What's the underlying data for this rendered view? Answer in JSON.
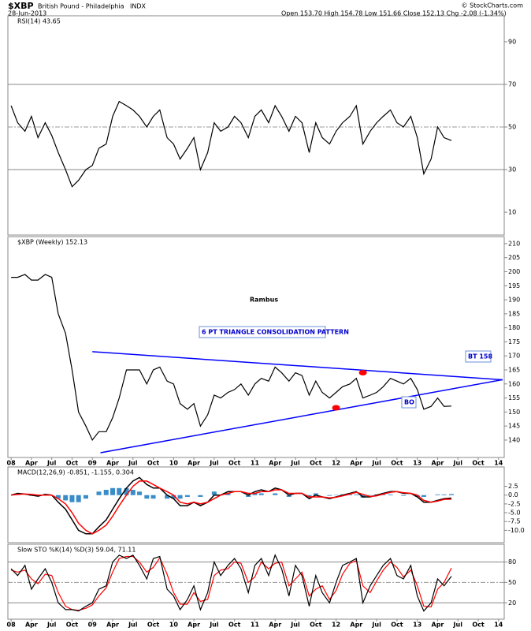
{
  "header": {
    "symbol": "$XBP",
    "name": "British Pound - Philadelphia",
    "exchange": "INDX",
    "date": "28-Jun-2013",
    "quote": "Open 153.70  High 154.78  Low 151.66  Close 152.13  Chg -2.08 (-1.34%)",
    "credit": "© StockCharts.com"
  },
  "chart_data": [
    {
      "type": "line",
      "title": "RSI(14) 43.65",
      "xlim": [
        2007.96,
        2014.07
      ],
      "ylim": [
        -0.7,
        102.2
      ],
      "yticks": [
        10,
        30,
        50,
        70,
        90
      ],
      "hlines": [
        70,
        30
      ],
      "dashed_hlines": [
        50
      ],
      "x": [
        2008.0,
        2008.08,
        2008.17,
        2008.25,
        2008.33,
        2008.42,
        2008.5,
        2008.58,
        2008.67,
        2008.75,
        2008.83,
        2008.92,
        2009.0,
        2009.08,
        2009.17,
        2009.25,
        2009.33,
        2009.42,
        2009.5,
        2009.58,
        2009.67,
        2009.75,
        2009.83,
        2009.92,
        2010.0,
        2010.08,
        2010.17,
        2010.25,
        2010.33,
        2010.42,
        2010.5,
        2010.58,
        2010.67,
        2010.75,
        2010.83,
        2010.92,
        2011.0,
        2011.08,
        2011.17,
        2011.25,
        2011.33,
        2011.42,
        2011.5,
        2011.58,
        2011.67,
        2011.75,
        2011.83,
        2011.92,
        2012.0,
        2012.08,
        2012.17,
        2012.25,
        2012.33,
        2012.42,
        2012.5,
        2012.58,
        2012.67,
        2012.75,
        2012.83,
        2012.92,
        2013.0,
        2013.08,
        2013.17,
        2013.25,
        2013.33,
        2013.42
      ],
      "series": [
        {
          "color": "#000000",
          "values": [
            60,
            52,
            48,
            55,
            45,
            52,
            46,
            38,
            30,
            22,
            25,
            30,
            32,
            40,
            42,
            55,
            62,
            60,
            58,
            55,
            50,
            55,
            58,
            45,
            42,
            35,
            40,
            45,
            30,
            38,
            52,
            48,
            50,
            55,
            52,
            45,
            55,
            58,
            52,
            60,
            55,
            48,
            55,
            52,
            38,
            52,
            45,
            42,
            48,
            52,
            55,
            60,
            42,
            48,
            52,
            55,
            58,
            52,
            50,
            55,
            45,
            28,
            35,
            50,
            45,
            43.65
          ]
        }
      ]
    },
    {
      "type": "line",
      "title": "$XBP (Weekly) 152.13",
      "xlim": [
        2007.96,
        2014.07
      ],
      "ylim": [
        133.8,
        212.5
      ],
      "yticks": [
        140,
        145,
        150,
        155,
        160,
        165,
        170,
        175,
        180,
        185,
        190,
        195,
        200,
        205,
        210
      ],
      "xticks": [
        {
          "value": 2008,
          "label": "08"
        },
        {
          "value": 2008.25,
          "label": "Apr"
        },
        {
          "value": 2008.5,
          "label": "Jul"
        },
        {
          "value": 2008.75,
          "label": "Oct"
        },
        {
          "value": 2009,
          "label": "09"
        },
        {
          "value": 2009.25,
          "label": "Apr"
        },
        {
          "value": 2009.5,
          "label": "Jul"
        },
        {
          "value": 2009.75,
          "label": "Oct"
        },
        {
          "value": 2010,
          "label": "10"
        },
        {
          "value": 2010.25,
          "label": "Apr"
        },
        {
          "value": 2010.5,
          "label": "Jul"
        },
        {
          "value": 2010.75,
          "label": "Oct"
        },
        {
          "value": 2011,
          "label": "11"
        },
        {
          "value": 2011.25,
          "label": "Apr"
        },
        {
          "value": 2011.5,
          "label": "Jul"
        },
        {
          "value": 2011.75,
          "label": "Oct"
        },
        {
          "value": 2012,
          "label": "12"
        },
        {
          "value": 2012.25,
          "label": "Apr"
        },
        {
          "value": 2012.5,
          "label": "Jul"
        },
        {
          "value": 2012.75,
          "label": "Oct"
        },
        {
          "value": 2013,
          "label": "13"
        },
        {
          "value": 2013.25,
          "label": "Apr"
        },
        {
          "value": 2013.5,
          "label": "Jul"
        },
        {
          "value": 2013.75,
          "label": "Oct"
        },
        {
          "value": 2014,
          "label": "14"
        }
      ],
      "x": [
        2008.0,
        2008.08,
        2008.17,
        2008.25,
        2008.33,
        2008.42,
        2008.5,
        2008.58,
        2008.67,
        2008.75,
        2008.83,
        2008.92,
        2009.0,
        2009.08,
        2009.17,
        2009.25,
        2009.33,
        2009.42,
        2009.5,
        2009.58,
        2009.67,
        2009.75,
        2009.83,
        2009.92,
        2010.0,
        2010.08,
        2010.17,
        2010.25,
        2010.33,
        2010.42,
        2010.5,
        2010.58,
        2010.67,
        2010.75,
        2010.83,
        2010.92,
        2011.0,
        2011.08,
        2011.17,
        2011.25,
        2011.33,
        2011.42,
        2011.5,
        2011.58,
        2011.67,
        2011.75,
        2011.83,
        2011.92,
        2012.0,
        2012.08,
        2012.17,
        2012.25,
        2012.33,
        2012.42,
        2012.5,
        2012.58,
        2012.67,
        2012.75,
        2012.83,
        2012.92,
        2013.0,
        2013.08,
        2013.17,
        2013.25,
        2013.33,
        2013.42
      ],
      "series": [
        {
          "color": "#000000",
          "values": [
            198,
            198,
            199,
            197,
            197,
            199,
            198,
            185,
            178,
            165,
            150,
            145,
            140,
            143,
            143,
            148,
            155,
            165,
            165,
            165,
            160,
            165,
            166,
            161,
            160,
            153,
            151,
            153,
            145,
            149,
            156,
            155,
            157,
            158,
            160,
            156,
            160,
            162,
            161,
            166,
            164,
            161,
            164,
            163,
            156,
            161,
            157,
            155,
            157,
            159,
            160,
            162,
            155,
            156,
            157,
            159,
            162,
            161,
            160,
            162,
            158,
            151,
            152,
            155,
            152,
            152.13
          ]
        }
      ],
      "trendlines": [
        {
          "color": "#0000ff",
          "x": [
            2009.0,
            2014.05
          ],
          "y": [
            171.5,
            161.5
          ]
        },
        {
          "color": "#0000ff",
          "x": [
            2009.1,
            2014.05
          ],
          "y": [
            135.5,
            161.5
          ]
        }
      ],
      "markers": {
        "color": "#ff0000",
        "x": [
          2012.0,
          2012.33
        ],
        "y": [
          151.5,
          164
        ]
      },
      "annotations": [
        "Rambus",
        "6 PT TRIANGLE CONSOLIDATION PATTERN",
        "BT 158",
        "BO"
      ]
    },
    {
      "type": "combo",
      "title": "MACD(12,26,9) -0.851, -1.155, 0.304",
      "xlim": [
        2007.96,
        2014.07
      ],
      "ylim": [
        -13.5,
        8
      ],
      "yticks": [
        {
          "value": 2.5,
          "label": "2.5"
        },
        {
          "value": 0,
          "label": "0.0"
        },
        {
          "value": -2.5,
          "label": "-2.5"
        },
        {
          "value": -5,
          "label": "-5.0"
        },
        {
          "value": -7.5,
          "label": "-7.5"
        },
        {
          "value": -10,
          "label": "-10.0"
        }
      ],
      "x": [
        2008.0,
        2008.08,
        2008.17,
        2008.25,
        2008.33,
        2008.42,
        2008.5,
        2008.58,
        2008.67,
        2008.75,
        2008.83,
        2008.92,
        2009.0,
        2009.08,
        2009.17,
        2009.25,
        2009.33,
        2009.42,
        2009.5,
        2009.58,
        2009.67,
        2009.75,
        2009.83,
        2009.92,
        2010.0,
        2010.08,
        2010.17,
        2010.25,
        2010.33,
        2010.42,
        2010.5,
        2010.58,
        2010.67,
        2010.75,
        2010.83,
        2010.92,
        2011.0,
        2011.08,
        2011.17,
        2011.25,
        2011.33,
        2011.42,
        2011.5,
        2011.58,
        2011.67,
        2011.75,
        2011.83,
        2011.92,
        2012.0,
        2012.08,
        2012.17,
        2012.25,
        2012.33,
        2012.42,
        2012.5,
        2012.58,
        2012.67,
        2012.75,
        2012.83,
        2012.92,
        2013.0,
        2013.08,
        2013.17,
        2013.25,
        2013.33,
        2013.42
      ],
      "series": [
        {
          "kind": "bar",
          "color": "#3a8cc8",
          "values": [
            0,
            0.3,
            0,
            -0.2,
            -0.3,
            0.2,
            0,
            -1,
            -1.5,
            -2,
            -2,
            -1,
            0,
            1,
            1.5,
            2,
            2,
            2,
            1.5,
            1,
            -1,
            -1,
            0,
            -1,
            -1,
            -1,
            -0.5,
            0,
            -0.5,
            0,
            1,
            0,
            0.5,
            0,
            0,
            -0.5,
            0.5,
            0.5,
            0,
            0.5,
            0,
            -0.5,
            0,
            0,
            -0.5,
            0.5,
            0,
            -0.2,
            0.1,
            0.2,
            0.2,
            0.2,
            -0.7,
            -0.1,
            0.2,
            0.2,
            0.2,
            0,
            -0.2,
            0,
            -0.5,
            -0.5,
            0,
            0.2,
            0.2,
            0.304
          ]
        },
        {
          "kind": "line",
          "color": "#000000",
          "values": [
            0,
            0.5,
            0.3,
            0,
            -0.3,
            0.2,
            0,
            -2,
            -4,
            -7,
            -10,
            -11,
            -11,
            -9,
            -7,
            -4,
            -1,
            2,
            4,
            5,
            3,
            2,
            2,
            0,
            -1,
            -3,
            -3,
            -2,
            -3,
            -2,
            0,
            0,
            1,
            1,
            1,
            0,
            1,
            1.5,
            1,
            2,
            1.5,
            0,
            0.5,
            0.5,
            -1,
            0,
            -0.5,
            -1,
            -0.5,
            0,
            0.5,
            1,
            -0.5,
            -0.5,
            0,
            0.5,
            1,
            1,
            0.5,
            0.5,
            -0.5,
            -2,
            -2,
            -1.5,
            -1,
            -0.851
          ]
        },
        {
          "kind": "line",
          "color": "#ff0000",
          "values": [
            0,
            0.2,
            0.3,
            0.2,
            0,
            0,
            0,
            -1,
            -2.5,
            -5,
            -8,
            -10,
            -11,
            -10,
            -8.5,
            -6,
            -3,
            0,
            2.5,
            4,
            4,
            3,
            2,
            1,
            0,
            -2,
            -2.5,
            -2,
            -2.5,
            -2,
            -1,
            0,
            0.5,
            1,
            1,
            0.5,
            0.5,
            1,
            1,
            1.5,
            1.5,
            0.5,
            0.5,
            0.5,
            -0.5,
            -0.5,
            -0.5,
            -0.8,
            -0.6,
            -0.2,
            0.3,
            0.8,
            0.2,
            -0.4,
            -0.2,
            0.3,
            0.8,
            1,
            0.7,
            0.5,
            0,
            -1.5,
            -2,
            -1.7,
            -1.2,
            -1.155
          ]
        }
      ]
    },
    {
      "type": "line",
      "title": "Slow STO %K(14) %D(3) 59.04, 71.11",
      "xlim": [
        2007.96,
        2014.07
      ],
      "ylim": [
        -4,
        106
      ],
      "yticks": [
        20,
        50,
        80
      ],
      "hlines": [
        80,
        20
      ],
      "dashed_hlines": [
        50
      ],
      "xticks": [
        {
          "value": 2008,
          "label": "08"
        },
        {
          "value": 2008.25,
          "label": "Apr"
        },
        {
          "value": 2008.5,
          "label": "Jul"
        },
        {
          "value": 2008.75,
          "label": "Oct"
        },
        {
          "value": 2009,
          "label": "09"
        },
        {
          "value": 2009.25,
          "label": "Apr"
        },
        {
          "value": 2009.5,
          "label": "Jul"
        },
        {
          "value": 2009.75,
          "label": "Oct"
        },
        {
          "value": 2010,
          "label": "10"
        },
        {
          "value": 2010.25,
          "label": "Apr"
        },
        {
          "value": 2010.5,
          "label": "Jul"
        },
        {
          "value": 2010.75,
          "label": "Oct"
        },
        {
          "value": 2011,
          "label": "11"
        },
        {
          "value": 2011.25,
          "label": "Apr"
        },
        {
          "value": 2011.5,
          "label": "Jul"
        },
        {
          "value": 2011.75,
          "label": "Oct"
        },
        {
          "value": 2012,
          "label": "12"
        },
        {
          "value": 2012.25,
          "label": "Apr"
        },
        {
          "value": 2012.5,
          "label": "Jul"
        },
        {
          "value": 2012.75,
          "label": "Oct"
        },
        {
          "value": 2013,
          "label": "13"
        },
        {
          "value": 2013.25,
          "label": "Apr"
        },
        {
          "value": 2013.5,
          "label": "Jul"
        },
        {
          "value": 2013.75,
          "label": "Oct"
        },
        {
          "value": 2014,
          "label": "14"
        }
      ],
      "x": [
        2008.0,
        2008.08,
        2008.17,
        2008.25,
        2008.33,
        2008.42,
        2008.5,
        2008.58,
        2008.67,
        2008.75,
        2008.83,
        2008.92,
        2009.0,
        2009.08,
        2009.17,
        2009.25,
        2009.33,
        2009.42,
        2009.5,
        2009.58,
        2009.67,
        2009.75,
        2009.83,
        2009.92,
        2010.0,
        2010.08,
        2010.17,
        2010.25,
        2010.33,
        2010.42,
        2010.5,
        2010.58,
        2010.67,
        2010.75,
        2010.83,
        2010.92,
        2011.0,
        2011.08,
        2011.17,
        2011.25,
        2011.33,
        2011.42,
        2011.5,
        2011.58,
        2011.67,
        2011.75,
        2011.83,
        2011.92,
        2012.0,
        2012.08,
        2012.17,
        2012.25,
        2012.33,
        2012.42,
        2012.5,
        2012.58,
        2012.67,
        2012.75,
        2012.83,
        2012.92,
        2013.0,
        2013.08,
        2013.17,
        2013.25,
        2013.33,
        2013.42
      ],
      "series": [
        {
          "color": "#ff0000",
          "values": [
            68,
            65,
            68,
            55,
            48,
            62,
            60,
            35,
            15,
            10,
            9,
            12,
            17,
            30,
            42,
            65,
            85,
            88,
            88,
            80,
            65,
            72,
            86,
            62,
            35,
            18,
            18,
            35,
            22,
            25,
            60,
            68,
            70,
            80,
            78,
            50,
            58,
            80,
            70,
            78,
            80,
            45,
            55,
            65,
            30,
            40,
            45,
            25,
            38,
            62,
            78,
            82,
            45,
            35,
            52,
            68,
            80,
            72,
            58,
            68,
            45,
            15,
            14,
            40,
            50,
            71.11
          ]
        },
        {
          "color": "#000000",
          "values": [
            70,
            60,
            75,
            40,
            55,
            70,
            50,
            20,
            10,
            10,
            8,
            15,
            20,
            40,
            45,
            80,
            90,
            85,
            90,
            75,
            55,
            85,
            88,
            40,
            30,
            10,
            25,
            45,
            10,
            35,
            80,
            60,
            75,
            85,
            70,
            35,
            75,
            85,
            60,
            90,
            70,
            30,
            75,
            60,
            15,
            60,
            35,
            20,
            50,
            75,
            80,
            85,
            20,
            45,
            60,
            75,
            85,
            60,
            55,
            75,
            30,
            8,
            20,
            55,
            45,
            59.04
          ]
        }
      ]
    }
  ]
}
